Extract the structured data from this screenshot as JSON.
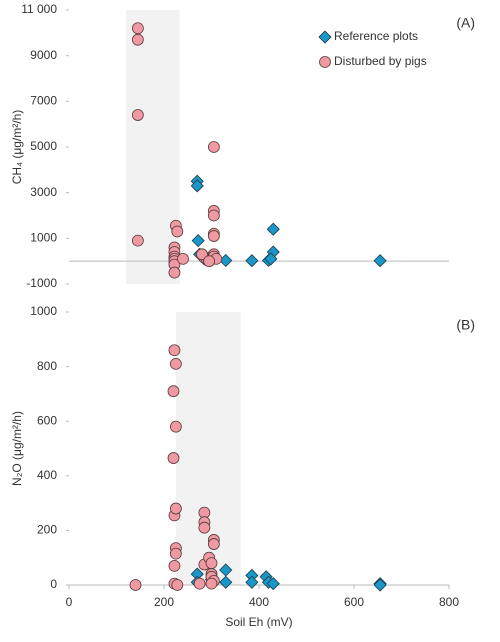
{
  "chart_data": [
    {
      "type": "scatter",
      "panel_label": "(A)",
      "ylabel": "CH₄ (μg/m²/h)",
      "xlim": [
        0,
        800
      ],
      "ylim": [
        -1000,
        11000
      ],
      "yticks": [
        -1000,
        1000,
        3000,
        5000,
        7000,
        9000,
        {
          "value": 11000,
          "label": "11 000"
        }
      ],
      "shade_x": [
        120,
        233
      ],
      "legend": "upper right",
      "series": [
        {
          "name": "Reference plots",
          "marker": "diamond",
          "color": "#1a96c8",
          "x": [
            270,
            270,
            272,
            275,
            285,
            300,
            330,
            385,
            420,
            430,
            430,
            425,
            655
          ],
          "y": [
            3500,
            3300,
            900,
            300,
            100,
            50,
            30,
            20,
            30,
            1400,
            400,
            100,
            20
          ]
        },
        {
          "name": "Disturbed by pigs",
          "marker": "circle",
          "color": "#ef9aa2",
          "x": [
            145,
            145,
            145,
            145,
            225,
            228,
            222,
            222,
            222,
            222,
            222,
            222,
            222,
            240,
            285,
            290,
            295,
            300,
            305,
            305,
            305,
            305,
            305,
            305,
            305,
            310,
            280,
            295
          ],
          "y": [
            10200,
            9700,
            6400,
            900,
            1550,
            1300,
            600,
            400,
            200,
            100,
            0,
            -150,
            -500,
            100,
            150,
            100,
            50,
            200,
            5000,
            2200,
            2000,
            1200,
            1100,
            300,
            200,
            100,
            300,
            0
          ]
        }
      ]
    },
    {
      "type": "scatter",
      "panel_label": "(B)",
      "ylabel": "N₂O (μg/m²/h)",
      "xlabel": "Soil Eh (mV)",
      "xlim": [
        0,
        800
      ],
      "xticks": [
        0,
        200,
        400,
        600,
        800
      ],
      "ylim": [
        0,
        1000
      ],
      "yticks": [
        0,
        200,
        400,
        600,
        800,
        1000
      ],
      "shade_x": [
        225,
        361
      ],
      "series": [
        {
          "name": "Reference plots",
          "marker": "diamond",
          "color": "#1a96c8",
          "x": [
            270,
            270,
            300,
            330,
            330,
            385,
            385,
            415,
            420,
            430,
            655,
            655
          ],
          "y": [
            40,
            10,
            20,
            55,
            10,
            35,
            10,
            30,
            10,
            5,
            5,
            0
          ]
        },
        {
          "name": "Disturbed by pigs",
          "marker": "circle",
          "color": "#ef9aa2",
          "x": [
            140,
            222,
            225,
            220,
            225,
            220,
            222,
            225,
            225,
            225,
            222,
            222,
            228,
            285,
            285,
            285,
            285,
            295,
            305,
            305,
            300,
            300,
            300,
            305,
            300,
            275
          ],
          "y": [
            0,
            860,
            810,
            710,
            580,
            465,
            255,
            280,
            135,
            115,
            70,
            5,
            0,
            265,
            230,
            210,
            75,
            100,
            165,
            150,
            80,
            40,
            30,
            15,
            5,
            5
          ]
        }
      ]
    }
  ]
}
